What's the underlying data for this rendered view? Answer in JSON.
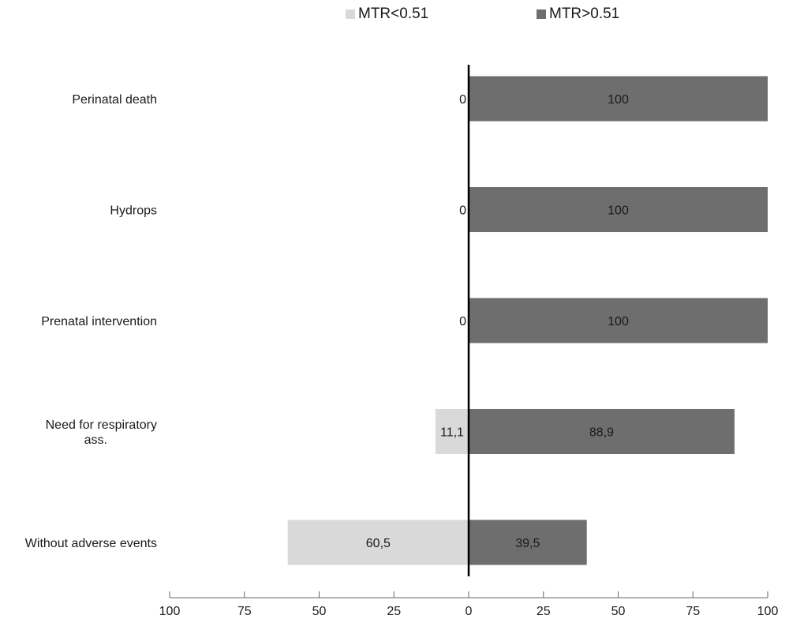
{
  "chart_data": {
    "type": "bar",
    "orientation": "horizontal-diverging",
    "categories": [
      "Perinatal death",
      "Hydrops",
      "Prenatal intervention",
      "Need for respiratory ass.",
      "Without adverse events"
    ],
    "category_label_lines": [
      [
        "Perinatal death"
      ],
      [
        "Hydrops"
      ],
      [
        "Prenatal intervention"
      ],
      [
        "Need for respiratory",
        "ass."
      ],
      [
        "Without adverse events"
      ]
    ],
    "series": [
      {
        "name": "MTR<0.51",
        "color": "#d9d9d9",
        "direction": "left",
        "values": [
          0,
          0,
          0,
          11.1,
          60.5
        ],
        "labels": [
          "0",
          "0",
          "0",
          "11,1",
          "60,5"
        ]
      },
      {
        "name": "MTR>0.51",
        "color": "#6e6e6e",
        "direction": "right",
        "values": [
          100,
          100,
          100,
          88.9,
          39.5
        ],
        "labels": [
          "100",
          "100",
          "100",
          "88,9",
          "39,5"
        ]
      }
    ],
    "xlim": [
      -100,
      100
    ],
    "x_tick_labels": [
      "100",
      "75",
      "50",
      "25",
      "0",
      "25",
      "50",
      "75",
      "100"
    ],
    "legend_position": "top-center",
    "grid": false
  },
  "legend": {
    "items": [
      {
        "label": "MTR<0.51",
        "color": "#d9d9d9"
      },
      {
        "label": "MTR>0.51",
        "color": "#6e6e6e"
      }
    ]
  }
}
